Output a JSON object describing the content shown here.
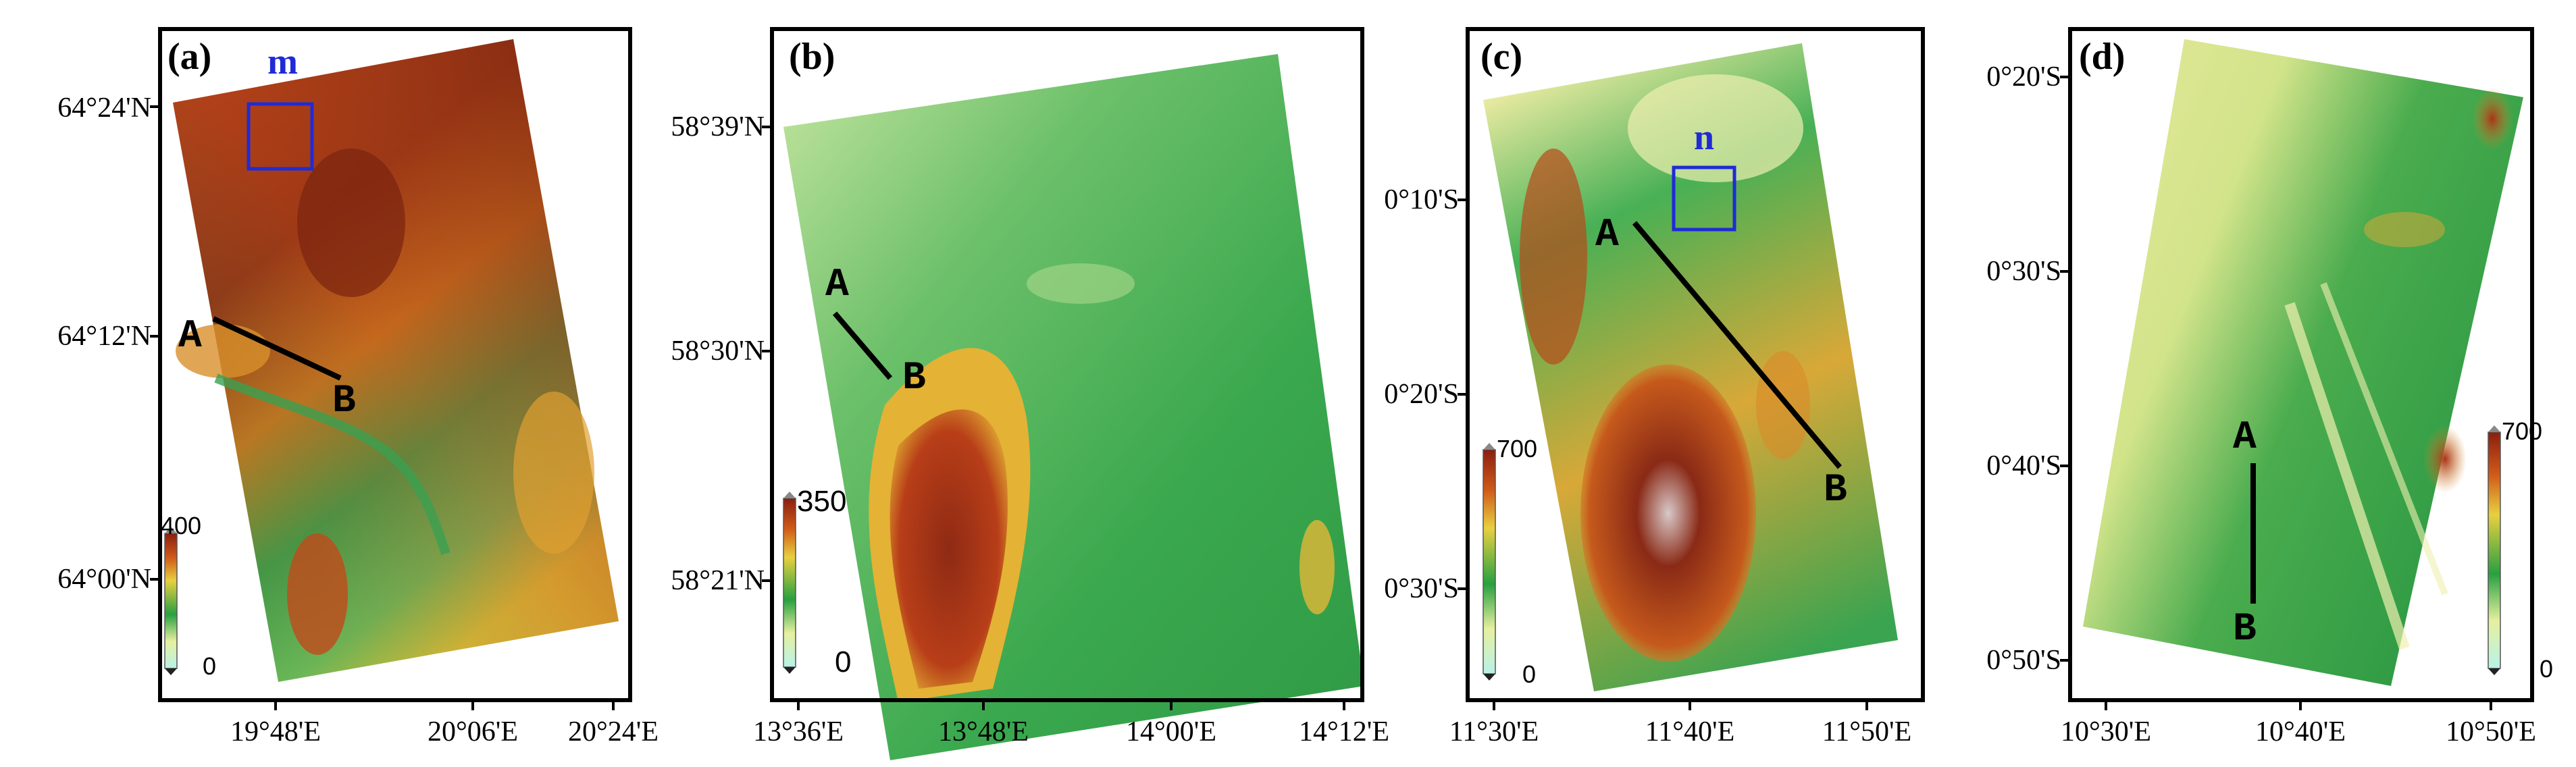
{
  "panels": [
    {
      "letter": "(a)",
      "lat_labels": [
        "64°24'N",
        "64°12'N",
        "64°00'N"
      ],
      "lon_labels": [
        "19°48'E",
        "20°06'E",
        "20°24'E"
      ],
      "colorbar": {
        "max": "400",
        "min": "0"
      },
      "profile": {
        "start": "A",
        "end": "B"
      },
      "box_label": "m"
    },
    {
      "letter": "(b)",
      "lat_labels": [
        "58°39'N",
        "58°30'N",
        "58°21'N"
      ],
      "lon_labels": [
        "13°36'E",
        "13°48'E",
        "14°00'E",
        "14°12'E"
      ],
      "colorbar": {
        "max": "350",
        "min": "0"
      },
      "profile": {
        "start": "A",
        "end": "B"
      }
    },
    {
      "letter": "(c)",
      "lat_labels": [
        "0°10'S",
        "0°20'S",
        "0°30'S"
      ],
      "lon_labels": [
        "11°30'E",
        "11°40'E",
        "11°50'E"
      ],
      "colorbar": {
        "max": "700",
        "min": "0"
      },
      "profile": {
        "start": "A",
        "end": "B"
      },
      "box_label": "n"
    },
    {
      "letter": "(d)",
      "lat_labels": [
        "0°20'S",
        "0°30'S",
        "0°40'S",
        "0°50'S"
      ],
      "lon_labels": [
        "10°30'E",
        "10°40'E",
        "10°50'E"
      ],
      "colorbar": {
        "max": "700",
        "min": "0"
      },
      "profile": {
        "start": "A",
        "end": "B"
      }
    }
  ],
  "colors": {
    "elev_low": "#c8f0d8",
    "elev_green": "#2ea84a",
    "elev_yellow": "#e8d84a",
    "elev_orange": "#d87a28",
    "elev_red": "#9a2a14",
    "elev_high": "#e8e0e0",
    "box": "#1f2bd6"
  }
}
